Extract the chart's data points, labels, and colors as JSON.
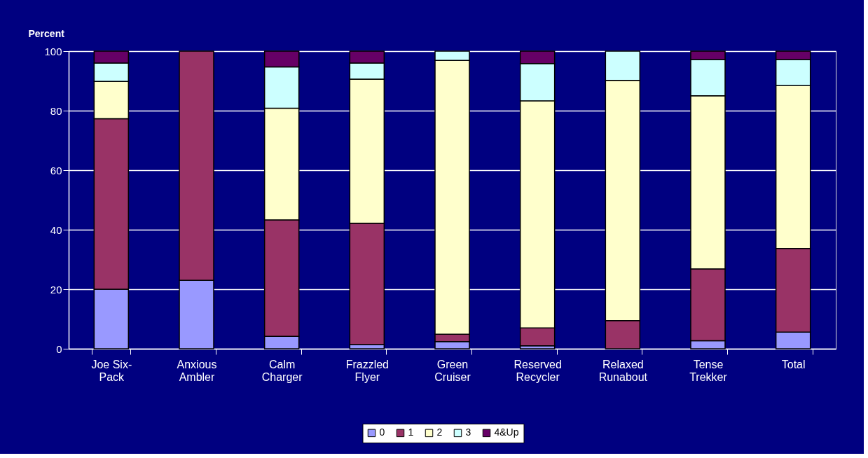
{
  "chart_data": {
    "type": "bar",
    "stacked": true,
    "ylabel": "Percent",
    "categories": [
      "Joe Six-\nPack",
      "Anxious\nAmbler",
      "Calm\nCharger",
      "Frazzled\nFlyer",
      "Green\nCruiser",
      "Reserved\nRecycler",
      "Relaxed\nRunabout",
      "Tense\nTrekker",
      "Total"
    ],
    "series": [
      {
        "name": "0",
        "color": "#9999ff",
        "values": [
          20.0,
          23.0,
          4.2,
          1.4,
          2.4,
          1.0,
          0,
          2.7,
          5.6
        ]
      },
      {
        "name": "1",
        "color": "#993366",
        "values": [
          57.3,
          77.0,
          39.1,
          40.8,
          2.5,
          6.0,
          9.5,
          24.1,
          28.1
        ]
      },
      {
        "name": "2",
        "color": "#ffffcc",
        "values": [
          12.5,
          0,
          37.5,
          48.4,
          92.0,
          76.3,
          80.7,
          58.2,
          54.7
        ]
      },
      {
        "name": "3",
        "color": "#ccffff",
        "values": [
          6.2,
          0,
          13.9,
          5.4,
          3.1,
          12.5,
          9.8,
          12.2,
          8.8
        ]
      },
      {
        "name": "4&Up",
        "color": "#660066",
        "values": [
          4.0,
          0,
          5.3,
          4.0,
          0,
          4.2,
          0,
          2.8,
          2.8
        ]
      }
    ],
    "ylim": [
      0,
      100
    ],
    "yticks": [
      0,
      20,
      40,
      60,
      80,
      100
    ],
    "grid": "y",
    "legend": "bottom"
  }
}
